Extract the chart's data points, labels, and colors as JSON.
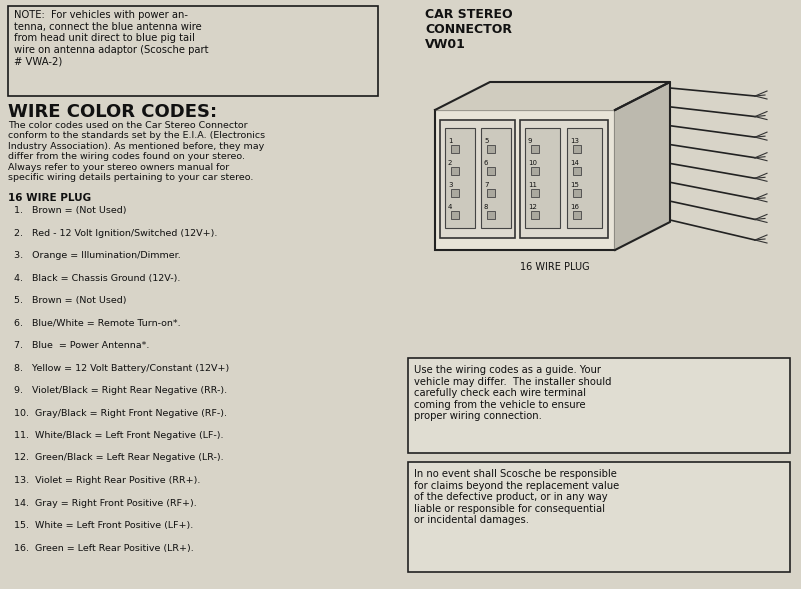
{
  "bg_color": "#d8d4c8",
  "border_color": "#1a1a1a",
  "note_box_text": "NOTE:  For vehicles with power an-\ntenna, connect the blue antenna wire\nfrom head unit direct to blue pig tail\nwire on antenna adaptor (Scosche part\n# VWA-2)",
  "wire_color_title": "WIRE COLOR CODES:",
  "wire_color_body": "The color codes used on the Car Stereo Connector\nconform to the standards set by the E.I.A. (Electronics\nIndustry Association). As mentioned before, they may\ndiffer from the wiring codes found on your stereo.\nAlways refer to your stereo owners manual for\nspecific wiring details pertaining to your car stereo.",
  "plug_title": "16 WIRE PLUG",
  "wire_list": [
    "1.   Brown = (Not Used)",
    "2.   Red - 12 Volt Ignition/Switched (12V+).",
    "3.   Orange = Illumination/Dimmer.",
    "4.   Black = Chassis Ground (12V-).",
    "5.   Brown = (Not Used)",
    "6.   Blue/White = Remote Turn-on*.",
    "7.   Blue  = Power Antenna*.",
    "8.   Yellow = 12 Volt Battery/Constant (12V+)",
    "9.   Violet/Black = Right Rear Negative (RR-).",
    "10.  Gray/Black = Right Front Negative (RF-).",
    "11.  White/Black = Left Front Negative (LF-).",
    "12.  Green/Black = Left Rear Negative (LR-).",
    "13.  Violet = Right Rear Positive (RR+).",
    "14.  Gray = Right Front Positive (RF+).",
    "15.  White = Left Front Positive (LF+).",
    "16.  Green = Left Rear Positive (LR+)."
  ],
  "car_stereo_title": "CAR STEREO\nCONNECTOR\nVW01",
  "wire_plug_label": "16 WIRE PLUG",
  "disclaimer_box1": "Use the wiring codes as a guide. Your\nvehicle may differ.  The installer should\ncarefully check each wire terminal\ncoming from the vehicle to ensure\nproper wiring connection.",
  "disclaimer_box2": "In no event shall Scosche be responsible\nfor claims beyond the replacement value\nof the defective product, or in any way\nliable or responsible for consequential\nor incidental damages.",
  "body_fc": "#e8e4d8",
  "sub_fc": "#dedad0",
  "inner_fc": "#ccc9be",
  "pin_fc": "#aaa89e",
  "top_fc": "#d0ccbf",
  "side_fc": "#bcb9ae",
  "box_fc": "#e0ddd2",
  "wire_color": "#222222",
  "text_color": "#111111"
}
